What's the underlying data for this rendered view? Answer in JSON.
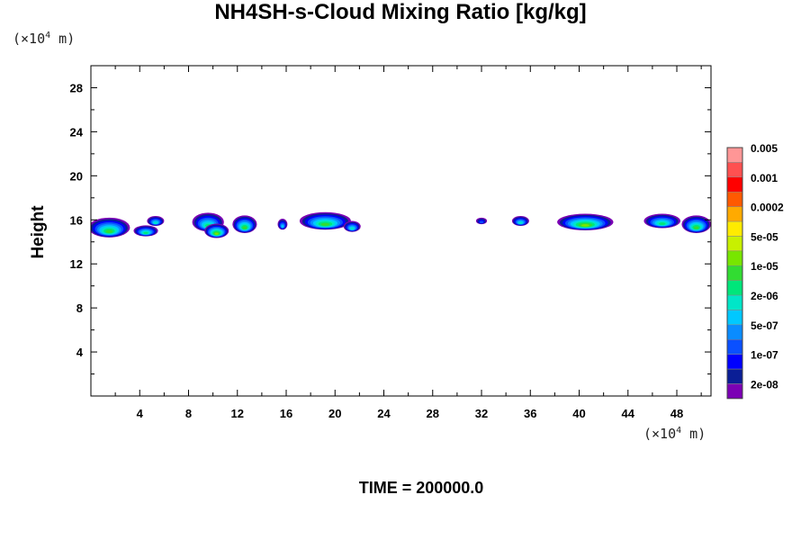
{
  "chart_data": {
    "type": "contour",
    "title": "NH4SH-s-Cloud Mixing Ratio [kg/kg]",
    "ylabel": "Height",
    "xlabel": "",
    "x_unit_prefix": "(×10",
    "x_unit_exp": "4",
    "x_unit_suffix": " m)",
    "y_unit_prefix": "(×10",
    "y_unit_exp": "4",
    "y_unit_suffix": " m)",
    "xlim": [
      0,
      50.8
    ],
    "ylim": [
      0,
      30
    ],
    "x_ticks": [
      4,
      8,
      12,
      16,
      20,
      24,
      28,
      32,
      36,
      40,
      44,
      48
    ],
    "y_ticks": [
      4,
      8,
      12,
      16,
      20,
      24,
      28
    ],
    "footer": "TIME = 200000.0",
    "colorbar": {
      "colors": [
        "#7B00B4",
        "#0A1E96",
        "#0000FF",
        "#0A50FF",
        "#0A8CFF",
        "#00C8FF",
        "#00E6C8",
        "#00E67A",
        "#32DC32",
        "#78E600",
        "#C8F000",
        "#FFEB00",
        "#FFAA00",
        "#FF5A00",
        "#FF0000",
        "#FF5050",
        "#FF9696"
      ],
      "labels": [
        "2e-08",
        "1e-07",
        "5e-07",
        "2e-06",
        "1e-05",
        "5e-05",
        "0.0002",
        "0.001",
        "0.005"
      ],
      "label_at_boundary": [
        1,
        3,
        5,
        7,
        9,
        11,
        13,
        15,
        17
      ]
    },
    "cloud_blobs": [
      {
        "x": 1.5,
        "y": 15.3,
        "w": 3.4,
        "h": 1.8,
        "peak": 9
      },
      {
        "x": 5.3,
        "y": 15.9,
        "w": 1.4,
        "h": 0.9,
        "peak": 7
      },
      {
        "x": 4.5,
        "y": 15.0,
        "w": 2.0,
        "h": 1.0,
        "peak": 8
      },
      {
        "x": 9.6,
        "y": 15.8,
        "w": 2.6,
        "h": 1.7,
        "peak": 8
      },
      {
        "x": 10.3,
        "y": 15.0,
        "w": 2.0,
        "h": 1.3,
        "peak": 10
      },
      {
        "x": 12.6,
        "y": 15.6,
        "w": 2.0,
        "h": 1.6,
        "peak": 9
      },
      {
        "x": 15.7,
        "y": 15.6,
        "w": 0.8,
        "h": 1.0,
        "peak": 6
      },
      {
        "x": 19.2,
        "y": 15.9,
        "w": 4.2,
        "h": 1.6,
        "peak": 9
      },
      {
        "x": 21.4,
        "y": 15.4,
        "w": 1.4,
        "h": 1.0,
        "peak": 7
      },
      {
        "x": 32.0,
        "y": 15.9,
        "w": 0.9,
        "h": 0.6,
        "peak": 4
      },
      {
        "x": 35.2,
        "y": 15.9,
        "w": 1.4,
        "h": 0.9,
        "peak": 7
      },
      {
        "x": 40.5,
        "y": 15.8,
        "w": 4.6,
        "h": 1.5,
        "peak": 10
      },
      {
        "x": 46.8,
        "y": 15.9,
        "w": 3.0,
        "h": 1.3,
        "peak": 8
      },
      {
        "x": 49.6,
        "y": 15.6,
        "w": 2.4,
        "h": 1.6,
        "peak": 9
      }
    ]
  }
}
